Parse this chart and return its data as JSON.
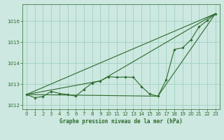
{
  "xlabel": "Graphe pression niveau de la mer (hPa)",
  "xlim": [
    -0.5,
    23.5
  ],
  "ylim": [
    1011.8,
    1016.8
  ],
  "yticks": [
    1012,
    1013,
    1014,
    1015,
    1016
  ],
  "xticks": [
    0,
    1,
    2,
    3,
    4,
    5,
    6,
    7,
    8,
    9,
    10,
    11,
    12,
    13,
    14,
    15,
    16,
    17,
    18,
    19,
    20,
    21,
    22,
    23
  ],
  "background_color": "#cce8e0",
  "grid_color": "#99ccbb",
  "line_color": "#2d6a2d",
  "main_x": [
    0,
    1,
    2,
    3,
    4,
    5,
    6,
    7,
    8,
    9,
    10,
    11,
    12,
    13,
    14,
    15,
    16,
    17,
    18,
    19,
    20,
    21,
    22,
    23
  ],
  "main_y": [
    1012.5,
    1012.35,
    1012.4,
    1012.65,
    1012.55,
    1012.5,
    1012.42,
    1012.75,
    1013.05,
    1013.15,
    1013.35,
    1013.32,
    1013.33,
    1013.32,
    1012.88,
    1012.52,
    1012.42,
    1013.2,
    1014.65,
    1014.72,
    1015.1,
    1015.72,
    1016.02,
    1016.35
  ],
  "line2_x": [
    0,
    23
  ],
  "line2_y": [
    1012.5,
    1016.35
  ],
  "line3_x": [
    0,
    9,
    23
  ],
  "line3_y": [
    1012.5,
    1013.15,
    1016.35
  ],
  "line4_x": [
    0,
    16,
    23
  ],
  "line4_y": [
    1012.5,
    1012.42,
    1016.35
  ],
  "title_fontsize": 5.5,
  "tick_fontsize": 5.0
}
